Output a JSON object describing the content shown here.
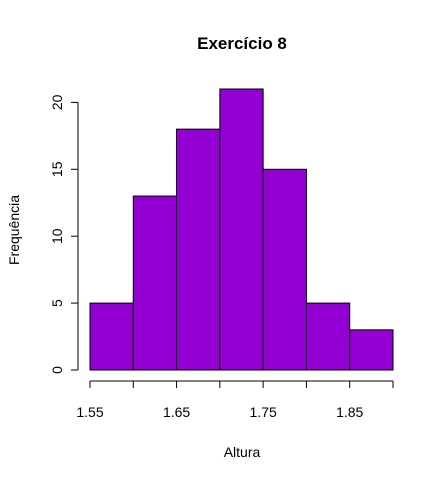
{
  "chart_data": {
    "type": "bar",
    "title": "Exercício 8",
    "xlabel": "Altura",
    "ylabel": "Frequência",
    "bins": [
      {
        "from": 1.55,
        "to": 1.6,
        "value": 5
      },
      {
        "from": 1.6,
        "to": 1.65,
        "value": 13
      },
      {
        "from": 1.65,
        "to": 1.7,
        "value": 18
      },
      {
        "from": 1.7,
        "to": 1.75,
        "value": 21
      },
      {
        "from": 1.75,
        "to": 1.8,
        "value": 15
      },
      {
        "from": 1.8,
        "to": 1.85,
        "value": 5
      },
      {
        "from": 1.85,
        "to": 1.9,
        "value": 3
      }
    ],
    "x_ticks": [
      1.55,
      1.6,
      1.65,
      1.7,
      1.75,
      1.8,
      1.85,
      1.9
    ],
    "x_tick_labels": [
      "1.55",
      "",
      "1.65",
      "",
      "1.75",
      "",
      "1.85",
      ""
    ],
    "y_ticks": [
      0,
      5,
      10,
      15,
      20
    ],
    "y_tick_labels": [
      "0",
      "5",
      "10",
      "15",
      "20"
    ],
    "xlim": [
      1.55,
      1.9
    ],
    "ylim": [
      0,
      21
    ],
    "bar_color": "#9400D3",
    "border_color": "#000000",
    "grid": false,
    "legend": "none"
  }
}
